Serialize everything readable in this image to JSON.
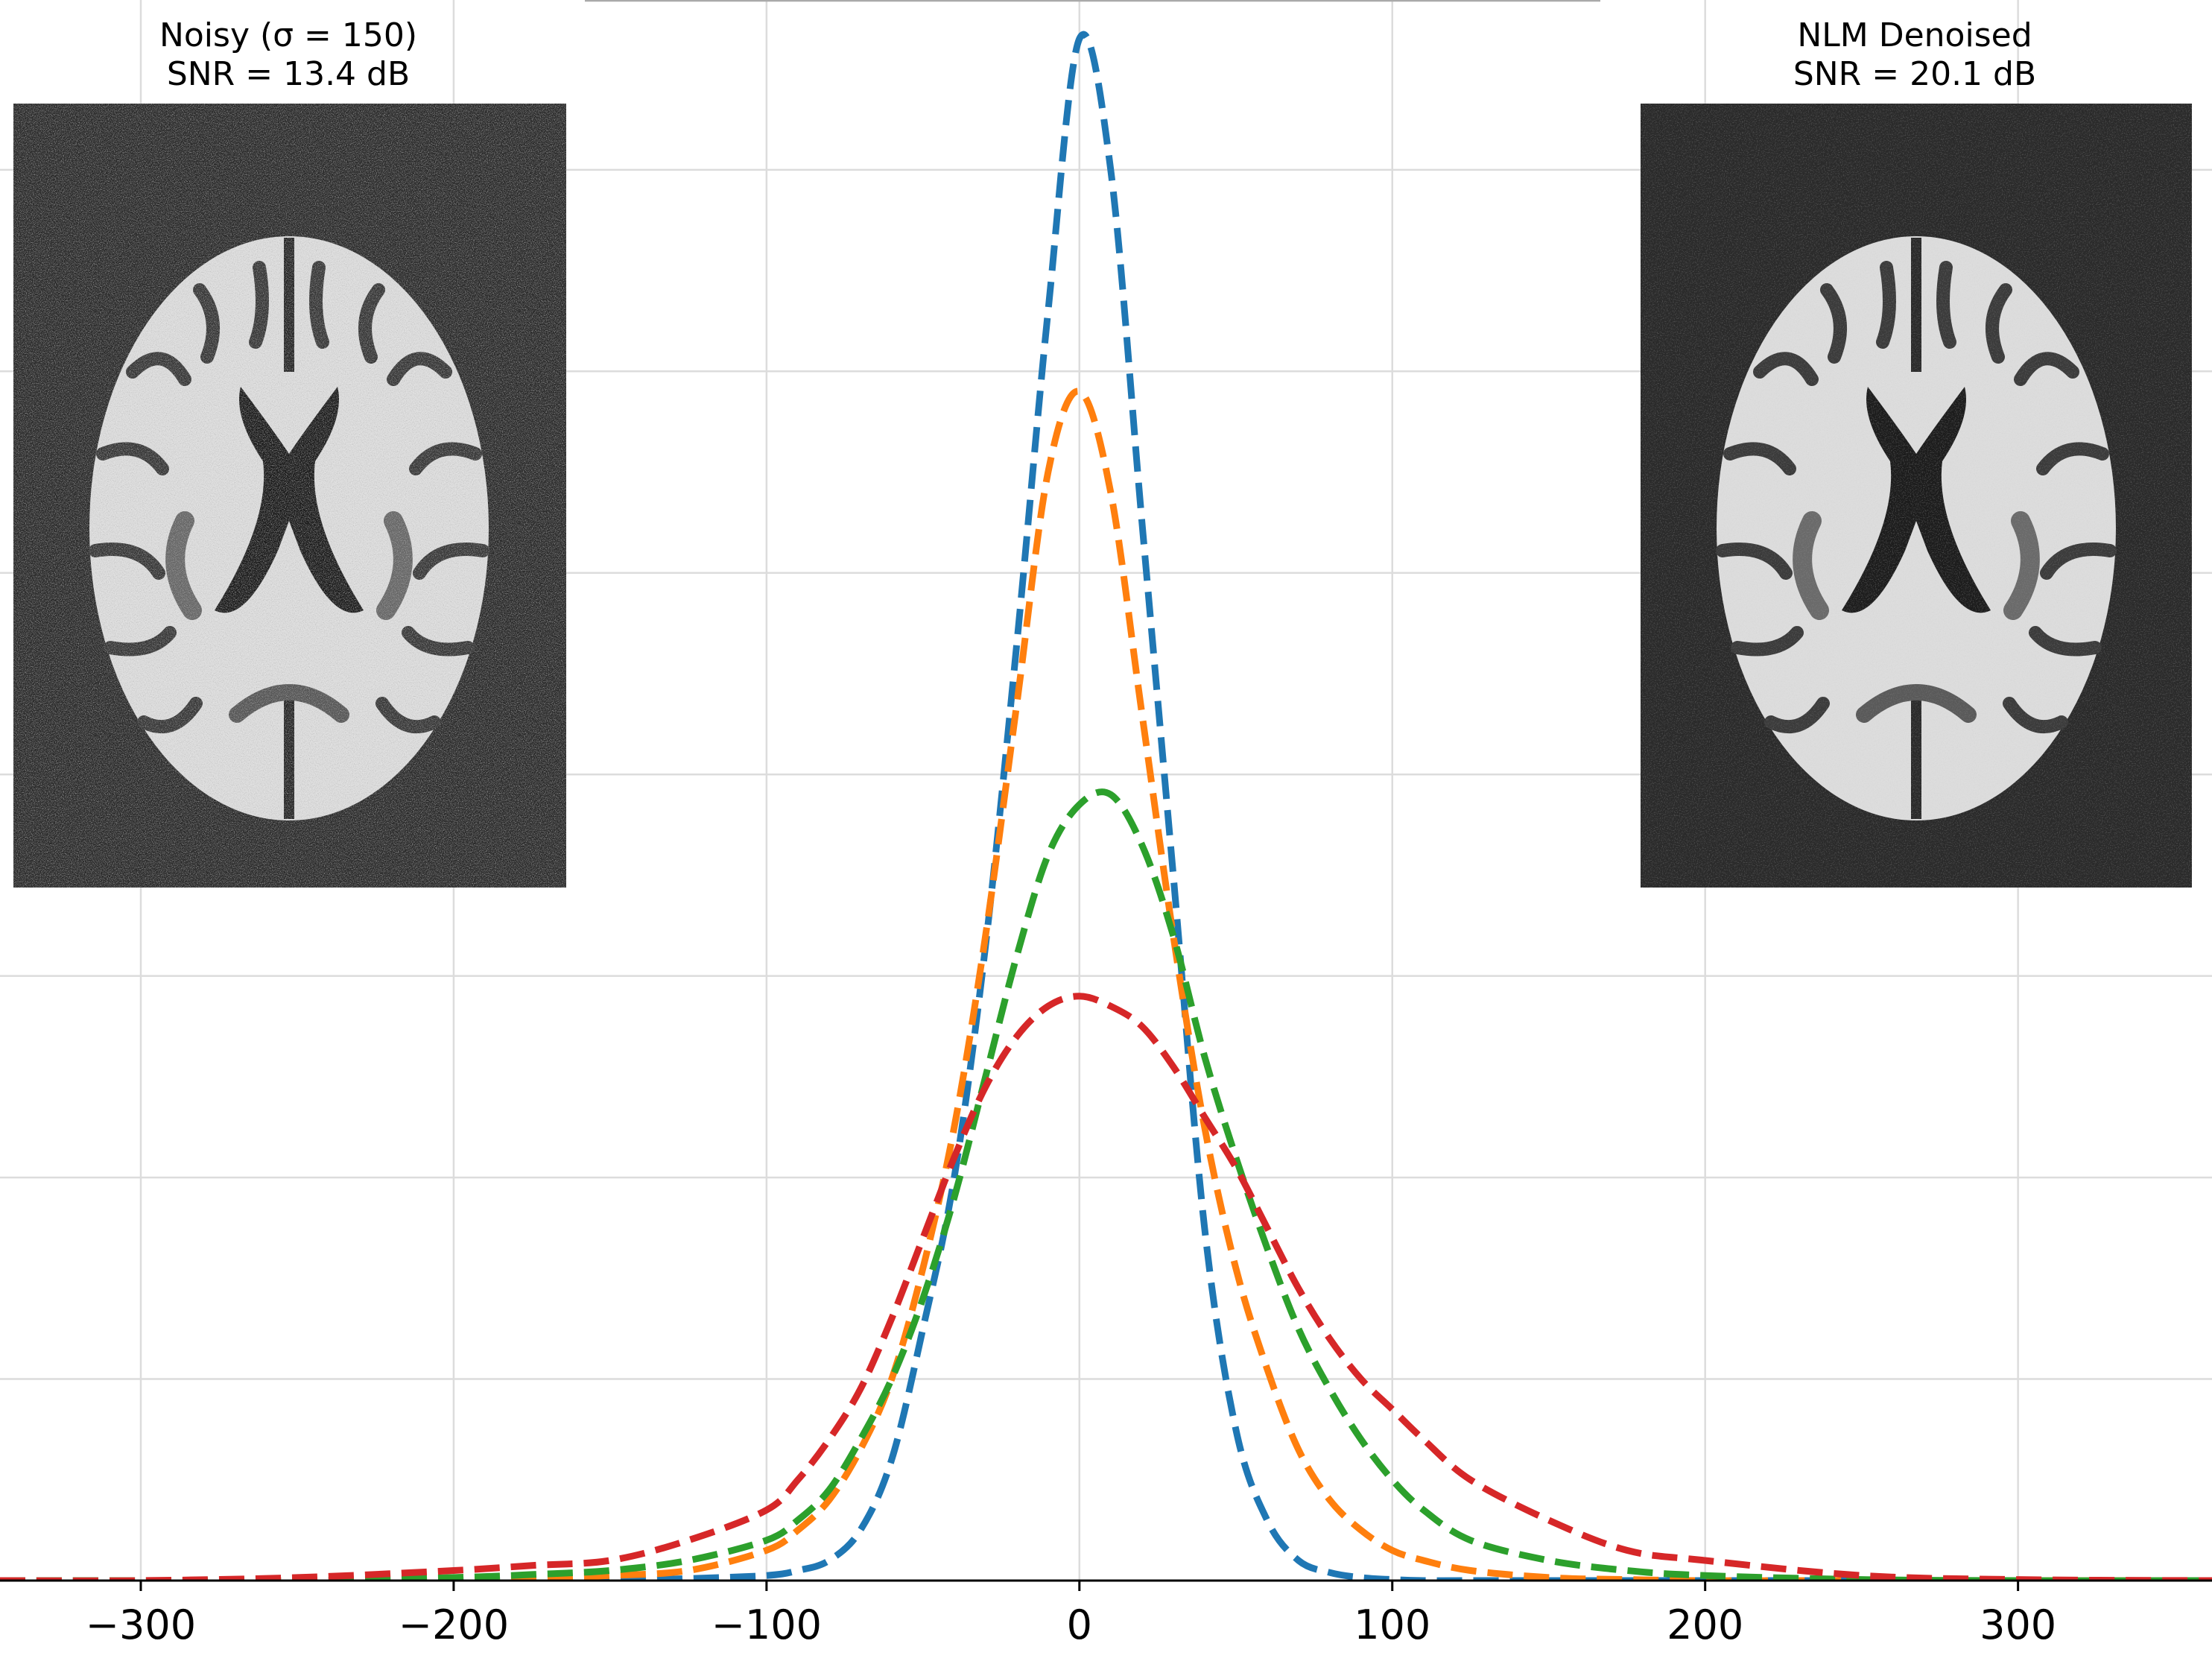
{
  "chart_data": {
    "type": "line",
    "xlabel": "",
    "ylabel": "",
    "xlim": [
      -345,
      362
    ],
    "ylim": [
      0,
      0.0155
    ],
    "grid": true,
    "line_style": "dashed",
    "x_ticks": [
      -300,
      -200,
      -100,
      0,
      100,
      200,
      300
    ],
    "x_tick_labels": [
      "−300",
      "−200",
      "−100",
      "0",
      "100",
      "200",
      "300"
    ],
    "y_gridlines": [
      0,
      0.002,
      0.004,
      0.006,
      0.008,
      0.01,
      0.012,
      0.014
    ],
    "x": [
      -345,
      -300,
      -250,
      -200,
      -175,
      -150,
      -125,
      -100,
      -90,
      -80,
      -70,
      -60,
      -50,
      -40,
      -30,
      -20,
      -10,
      0,
      10,
      20,
      30,
      40,
      50,
      60,
      70,
      80,
      90,
      100,
      110,
      125,
      150,
      175,
      200,
      250,
      300,
      362
    ],
    "series": [
      {
        "color": "#1f77b4",
        "values": [
          0,
          0,
          0,
          0,
          0,
          0,
          2e-05,
          5e-05,
          0.0001,
          0.0002,
          0.0005,
          0.0012,
          0.0025,
          0.004,
          0.0063,
          0.0093,
          0.0126,
          0.0153,
          0.014,
          0.0105,
          0.007,
          0.0035,
          0.0015,
          0.0006,
          0.0002,
          8e-05,
          3e-05,
          1e-05,
          0,
          0,
          0,
          0,
          0,
          0,
          0,
          0
        ]
      },
      {
        "color": "#ff7f0e",
        "values": [
          0,
          0,
          0,
          0,
          2e-05,
          5e-05,
          0.0001,
          0.0003,
          0.0005,
          0.0008,
          0.0013,
          0.002,
          0.0031,
          0.0045,
          0.0064,
          0.0087,
          0.011,
          0.0118,
          0.0108,
          0.0086,
          0.0064,
          0.0045,
          0.0031,
          0.0021,
          0.0013,
          0.0008,
          0.0005,
          0.0003,
          0.0002,
          0.0001,
          3e-05,
          1e-05,
          0,
          0,
          0,
          0
        ]
      },
      {
        "color": "#2ca02c",
        "values": [
          0,
          0,
          0,
          3e-05,
          6e-05,
          0.0001,
          0.0002,
          0.0004,
          0.0006,
          0.0009,
          0.0014,
          0.002,
          0.0028,
          0.0038,
          0.005,
          0.0062,
          0.0072,
          0.0077,
          0.0078,
          0.0073,
          0.0064,
          0.0052,
          0.0042,
          0.0033,
          0.0025,
          0.0019,
          0.0014,
          0.001,
          0.0007,
          0.0004,
          0.0002,
          0.0001,
          5e-05,
          1e-05,
          0,
          0
        ]
      },
      {
        "color": "#d62728",
        "values": [
          0,
          0,
          3e-05,
          0.0001,
          0.00015,
          0.0002,
          0.0004,
          0.0007,
          0.001,
          0.0014,
          0.0019,
          0.0026,
          0.0034,
          0.0042,
          0.0049,
          0.0054,
          0.0057,
          0.0058,
          0.0057,
          0.0055,
          0.0051,
          0.0046,
          0.0041,
          0.0035,
          0.0029,
          0.0024,
          0.002,
          0.0017,
          0.0014,
          0.001,
          0.0006,
          0.0003,
          0.0002,
          5e-05,
          1e-05,
          0
        ]
      }
    ]
  },
  "insets": {
    "left": {
      "title_line1": "Noisy (σ = 150)",
      "title_line2": "SNR = 13.4 dB"
    },
    "right": {
      "title_line1": "NLM Denoised",
      "title_line2": "SNR = 20.1 dB"
    }
  }
}
